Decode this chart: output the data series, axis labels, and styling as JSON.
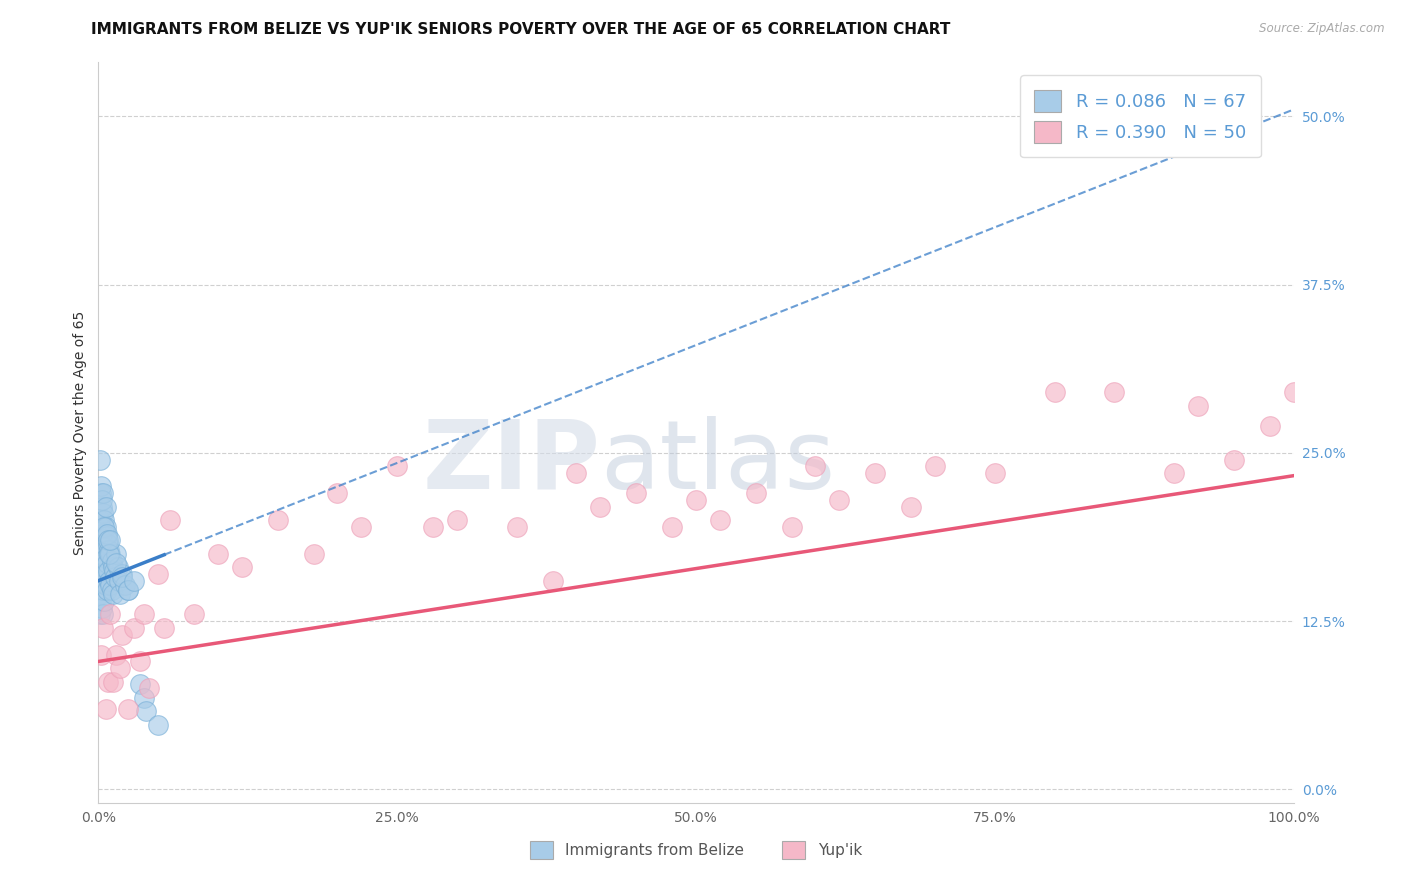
{
  "title": "IMMIGRANTS FROM BELIZE VS YUP'IK SENIORS POVERTY OVER THE AGE OF 65 CORRELATION CHART",
  "source": "Source: ZipAtlas.com",
  "ylabel": "Seniors Poverty Over the Age of 65",
  "xlim": [
    0.0,
    1.0
  ],
  "ylim": [
    -0.01,
    0.54
  ],
  "xticks": [
    0.0,
    0.25,
    0.5,
    0.75,
    1.0
  ],
  "xticklabels": [
    "0.0%",
    "25.0%",
    "50.0%",
    "75.0%",
    "100.0%"
  ],
  "yticks": [
    0.0,
    0.125,
    0.25,
    0.375,
    0.5
  ],
  "yticklabels": [
    "0.0%",
    "12.5%",
    "25.0%",
    "37.5%",
    "50.0%"
  ],
  "blue_color": "#a8cce8",
  "pink_color": "#f5b8c8",
  "blue_edge_color": "#7ab0d8",
  "pink_edge_color": "#eda0b8",
  "blue_line_color": "#3a7ec8",
  "pink_line_color": "#e85878",
  "blue_R": 0.086,
  "pink_R": 0.39,
  "blue_N": 67,
  "pink_N": 50,
  "blue_x": [
    0.001,
    0.001,
    0.001,
    0.001,
    0.001,
    0.002,
    0.002,
    0.002,
    0.002,
    0.002,
    0.003,
    0.003,
    0.003,
    0.003,
    0.003,
    0.004,
    0.004,
    0.004,
    0.004,
    0.004,
    0.005,
    0.005,
    0.005,
    0.005,
    0.006,
    0.006,
    0.006,
    0.007,
    0.007,
    0.007,
    0.008,
    0.008,
    0.009,
    0.009,
    0.01,
    0.01,
    0.011,
    0.011,
    0.012,
    0.012,
    0.013,
    0.014,
    0.015,
    0.016,
    0.017,
    0.018,
    0.02,
    0.022,
    0.025,
    0.001,
    0.002,
    0.003,
    0.004,
    0.005,
    0.006,
    0.007,
    0.008,
    0.009,
    0.01,
    0.015,
    0.02,
    0.025,
    0.03,
    0.035,
    0.038,
    0.04,
    0.05
  ],
  "blue_y": [
    0.2,
    0.175,
    0.16,
    0.145,
    0.13,
    0.22,
    0.195,
    0.17,
    0.155,
    0.14,
    0.21,
    0.19,
    0.175,
    0.155,
    0.135,
    0.205,
    0.185,
    0.165,
    0.148,
    0.13,
    0.2,
    0.18,
    0.16,
    0.14,
    0.195,
    0.172,
    0.152,
    0.188,
    0.168,
    0.148,
    0.182,
    0.162,
    0.178,
    0.155,
    0.175,
    0.152,
    0.17,
    0.148,
    0.165,
    0.145,
    0.162,
    0.158,
    0.175,
    0.165,
    0.155,
    0.145,
    0.16,
    0.152,
    0.148,
    0.245,
    0.225,
    0.215,
    0.22,
    0.195,
    0.21,
    0.19,
    0.185,
    0.175,
    0.185,
    0.168,
    0.158,
    0.148,
    0.155,
    0.078,
    0.068,
    0.058,
    0.048
  ],
  "pink_x": [
    0.002,
    0.004,
    0.006,
    0.008,
    0.01,
    0.012,
    0.015,
    0.018,
    0.02,
    0.025,
    0.03,
    0.035,
    0.038,
    0.042,
    0.05,
    0.055,
    0.06,
    0.08,
    0.1,
    0.12,
    0.15,
    0.18,
    0.2,
    0.22,
    0.25,
    0.28,
    0.3,
    0.35,
    0.38,
    0.4,
    0.42,
    0.45,
    0.48,
    0.5,
    0.52,
    0.55,
    0.58,
    0.6,
    0.62,
    0.65,
    0.68,
    0.7,
    0.75,
    0.8,
    0.85,
    0.9,
    0.92,
    0.95,
    0.98,
    1.0
  ],
  "pink_y": [
    0.1,
    0.12,
    0.06,
    0.08,
    0.13,
    0.08,
    0.1,
    0.09,
    0.115,
    0.06,
    0.12,
    0.095,
    0.13,
    0.075,
    0.16,
    0.12,
    0.2,
    0.13,
    0.175,
    0.165,
    0.2,
    0.175,
    0.22,
    0.195,
    0.24,
    0.195,
    0.2,
    0.195,
    0.155,
    0.235,
    0.21,
    0.22,
    0.195,
    0.215,
    0.2,
    0.22,
    0.195,
    0.24,
    0.215,
    0.235,
    0.21,
    0.24,
    0.235,
    0.295,
    0.295,
    0.235,
    0.285,
    0.245,
    0.27,
    0.295
  ],
  "blue_line_intercept": 0.155,
  "blue_line_slope": 0.35,
  "pink_line_intercept": 0.095,
  "pink_line_slope": 0.138,
  "title_fontsize": 11,
  "axis_label_fontsize": 10,
  "tick_fontsize": 10,
  "legend_fontsize": 13
}
